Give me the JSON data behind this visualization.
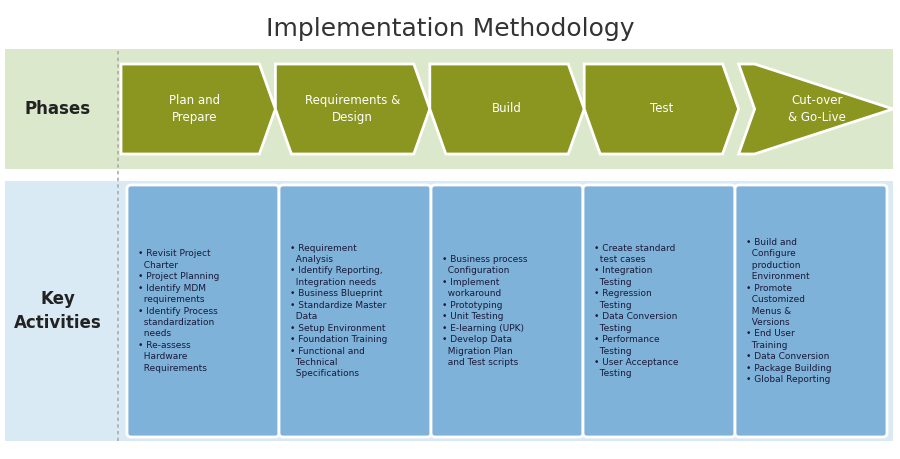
{
  "title": "Implementation Methodology",
  "title_fontsize": 18,
  "background_color": "#ffffff",
  "phases_bg": "#dce8cc",
  "activities_bg": "#daeaf5",
  "arrow_color": "#8b9620",
  "arrow_text_color": "#ffffff",
  "box_color": "#7fb2d8",
  "box_border_color": "#ffffff",
  "label_text_color": "#222222",
  "phases_label": "Phases",
  "activities_label": "Key\nActivities",
  "phases": [
    "Plan and\nPrepare",
    "Requirements &\nDesign",
    "Build",
    "Test",
    "Cut-over\n& Go-Live"
  ],
  "activities": [
    "• Revisit Project\n  Charter\n• Project Planning\n• Identify MDM\n  requirements\n• Identify Process\n  standardization\n  needs\n• Re-assess\n  Hardware\n  Requirements",
    "• Requirement\n  Analysis\n• Identify Reporting,\n  Integration needs\n• Business Blueprint\n• Standardize Master\n  Data\n• Setup Environment\n• Foundation Training\n• Functional and\n  Technical\n  Specifications",
    "• Business process\n  Configuration\n• Implement\n  workaround\n• Prototyping\n• Unit Testing\n• E-learning (UPK)\n• Develop Data\n  Migration Plan\n  and Test scripts",
    "• Create standard\n  test cases\n• Integration\n  Testing\n• Regression\n  Testing\n• Data Conversion\n  Testing\n• Performance\n  Testing\n• User Acceptance\n  Testing",
    "• Build and\n  Configure\n  production\n  Environment\n• Promote\n  Customized\n  Menus &\n  Versions\n• End User\n  Training\n• Data Conversion\n• Package Building\n• Global Reporting"
  ]
}
